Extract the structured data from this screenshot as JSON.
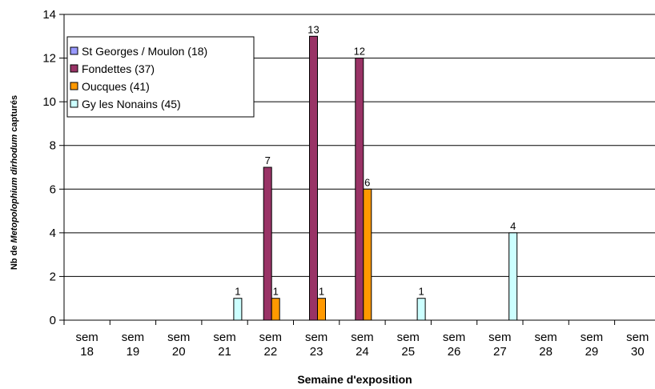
{
  "chart_data": {
    "type": "bar",
    "title": "",
    "xlabel": "Semaine d'exposition",
    "ylabel_prefix": "Nb de ",
    "ylabel_italic": "Metopolophium dirhodum",
    "ylabel_suffix": " capturés",
    "ylim": [
      0,
      14
    ],
    "yticks": [
      0,
      2,
      4,
      6,
      8,
      10,
      12,
      14
    ],
    "grid": true,
    "legend_position": "top-left",
    "category_line1": "sem",
    "categories": [
      "18",
      "19",
      "20",
      "21",
      "22",
      "23",
      "24",
      "25",
      "26",
      "27",
      "28",
      "29",
      "30"
    ],
    "series": [
      {
        "name": "St Georges / Moulon (18)",
        "color": "#9999ff",
        "values": [
          0,
          0,
          0,
          0,
          0,
          0,
          0,
          0,
          0,
          0,
          0,
          0,
          0
        ]
      },
      {
        "name": "Fondettes (37)",
        "color": "#993366",
        "values": [
          0,
          0,
          0,
          0,
          7,
          13,
          12,
          0,
          0,
          0,
          0,
          0,
          0
        ]
      },
      {
        "name": "Oucques (41)",
        "color": "#ff9900",
        "values": [
          0,
          0,
          0,
          0,
          1,
          1,
          6,
          0,
          0,
          0,
          0,
          0,
          0
        ]
      },
      {
        "name": "Gy les Nonains (45)",
        "color": "#ccffff",
        "values": [
          0,
          0,
          0,
          1,
          0,
          0,
          0,
          1,
          0,
          4,
          0,
          0,
          0
        ]
      }
    ]
  }
}
